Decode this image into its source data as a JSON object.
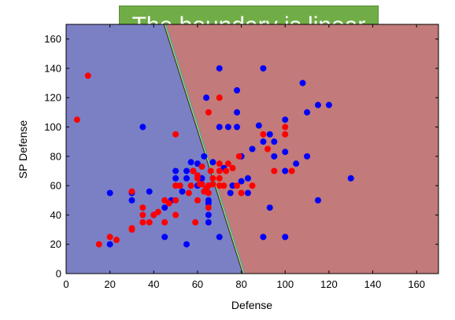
{
  "chart_data": {
    "type": "scatter",
    "title": "The boundary is linear",
    "xlabel": "Defense",
    "ylabel": "SP Defense",
    "xlim": [
      0,
      170
    ],
    "ylim": [
      0,
      170
    ],
    "xticks": [
      0,
      20,
      40,
      60,
      80,
      100,
      120,
      140,
      160
    ],
    "yticks": [
      0,
      20,
      40,
      60,
      80,
      100,
      120,
      140,
      160
    ],
    "grid": false,
    "regions": [
      {
        "name": "left-region",
        "color": "#7b80c5"
      },
      {
        "name": "right-region",
        "color": "#c27a7a"
      }
    ],
    "boundary": [
      [
        45,
        170
      ],
      [
        81,
        0
      ]
    ],
    "series": [
      {
        "color": "#0000ff",
        "points": [
          [
            20,
            20
          ],
          [
            20,
            55
          ],
          [
            30,
            50
          ],
          [
            30,
            55
          ],
          [
            35,
            100
          ],
          [
            38,
            56
          ],
          [
            40,
            40
          ],
          [
            45,
            45
          ],
          [
            45,
            25
          ],
          [
            48,
            50
          ],
          [
            50,
            65
          ],
          [
            50,
            70
          ],
          [
            53,
            56
          ],
          [
            55,
            70
          ],
          [
            55,
            20
          ],
          [
            55,
            65
          ],
          [
            57,
            76
          ],
          [
            58,
            70
          ],
          [
            60,
            60
          ],
          [
            60,
            75
          ],
          [
            62,
            65
          ],
          [
            63,
            80
          ],
          [
            64,
            120
          ],
          [
            65,
            50
          ],
          [
            65,
            40
          ],
          [
            65,
            35
          ],
          [
            65,
            48
          ],
          [
            67,
            76
          ],
          [
            70,
            140
          ],
          [
            70,
            100
          ],
          [
            70,
            25
          ],
          [
            72,
            72
          ],
          [
            74,
            100
          ],
          [
            75,
            55
          ],
          [
            76,
            60
          ],
          [
            78,
            125
          ],
          [
            78,
            110
          ],
          [
            78,
            100
          ],
          [
            80,
            80
          ],
          [
            80,
            63
          ],
          [
            83,
            55
          ],
          [
            83,
            65
          ],
          [
            85,
            85
          ],
          [
            88,
            101
          ],
          [
            90,
            25
          ],
          [
            90,
            140
          ],
          [
            90,
            90
          ],
          [
            93,
            95
          ],
          [
            93,
            45
          ],
          [
            95,
            80
          ],
          [
            95,
            90
          ],
          [
            100,
            105
          ],
          [
            100,
            70
          ],
          [
            100,
            83
          ],
          [
            100,
            25
          ],
          [
            105,
            75
          ],
          [
            108,
            130
          ],
          [
            110,
            110
          ],
          [
            110,
            80
          ],
          [
            115,
            115
          ],
          [
            115,
            50
          ],
          [
            120,
            115
          ],
          [
            130,
            65
          ]
        ]
      },
      {
        "color": "#ff0000",
        "points": [
          [
            5,
            105
          ],
          [
            10,
            135
          ],
          [
            15,
            20
          ],
          [
            20,
            25
          ],
          [
            23,
            23
          ],
          [
            30,
            56
          ],
          [
            30,
            30
          ],
          [
            30,
            31
          ],
          [
            35,
            45
          ],
          [
            35,
            40
          ],
          [
            35,
            35
          ],
          [
            38,
            35
          ],
          [
            40,
            40
          ],
          [
            42,
            42
          ],
          [
            45,
            35
          ],
          [
            45,
            50
          ],
          [
            47,
            48
          ],
          [
            50,
            95
          ],
          [
            50,
            60
          ],
          [
            50,
            50
          ],
          [
            50,
            40
          ],
          [
            52,
            60
          ],
          [
            56,
            55
          ],
          [
            57,
            60
          ],
          [
            58,
            70
          ],
          [
            59,
            35
          ],
          [
            60,
            65
          ],
          [
            60,
            50
          ],
          [
            60,
            67
          ],
          [
            61,
            61
          ],
          [
            62,
            61
          ],
          [
            62,
            73
          ],
          [
            63,
            56
          ],
          [
            64,
            58
          ],
          [
            65,
            110
          ],
          [
            65,
            60
          ],
          [
            65,
            55
          ],
          [
            65,
            45
          ],
          [
            66,
            70
          ],
          [
            67,
            65
          ],
          [
            67,
            61
          ],
          [
            70,
            120
          ],
          [
            70,
            75
          ],
          [
            70,
            70
          ],
          [
            70,
            65
          ],
          [
            70,
            60
          ],
          [
            72,
            60
          ],
          [
            73,
            70
          ],
          [
            74,
            75
          ],
          [
            76,
            72
          ],
          [
            78,
            60
          ],
          [
            79,
            80
          ],
          [
            80,
            55
          ],
          [
            85,
            60
          ],
          [
            90,
            95
          ],
          [
            92,
            85
          ],
          [
            95,
            70
          ],
          [
            100,
            100
          ],
          [
            100,
            95
          ],
          [
            103,
            70
          ]
        ]
      }
    ]
  }
}
